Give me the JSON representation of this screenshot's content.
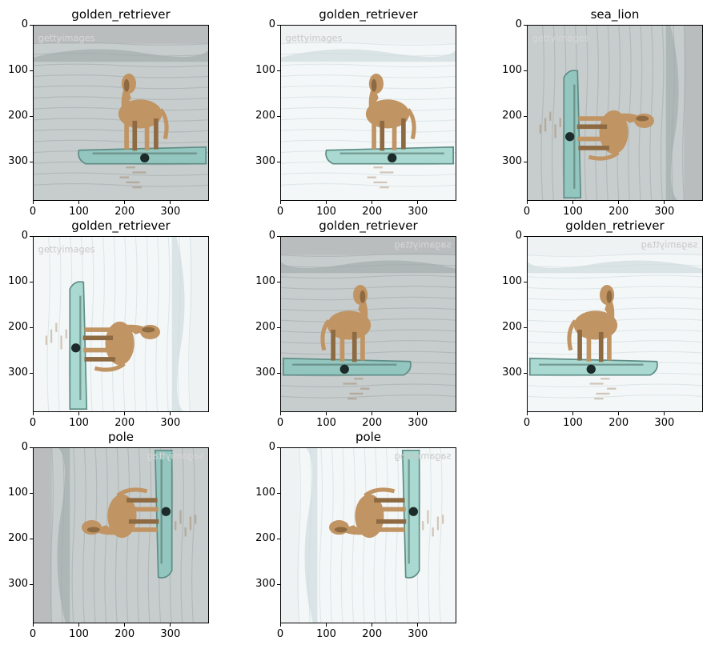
{
  "figure": {
    "panels": [
      {
        "title": "golden_retriever",
        "orientation": "upright",
        "flip": false,
        "brightness": "normal",
        "watermark": "gettyimages",
        "x_ticks": [
          "0",
          "100",
          "200",
          "300"
        ],
        "y_ticks": [
          "0",
          "100",
          "200",
          "300"
        ]
      },
      {
        "title": "golden_retriever",
        "orientation": "upright",
        "flip": false,
        "brightness": "bright",
        "watermark": "gettyimages",
        "x_ticks": [
          "0",
          "100",
          "200",
          "300"
        ],
        "y_ticks": [
          "0",
          "100",
          "200",
          "300"
        ]
      },
      {
        "title": "sea_lion",
        "orientation": "rotated",
        "flip": false,
        "brightness": "normal",
        "watermark": "gettyimages",
        "x_ticks": [
          "0",
          "100",
          "200",
          "300"
        ],
        "y_ticks": [
          "0",
          "100",
          "200",
          "300"
        ]
      },
      {
        "title": "golden_retriever",
        "orientation": "rotated",
        "flip": false,
        "brightness": "bright",
        "watermark": "gettyimages",
        "x_ticks": [
          "0",
          "100",
          "200",
          "300"
        ],
        "y_ticks": [
          "0",
          "100",
          "200",
          "300"
        ]
      },
      {
        "title": "golden_retriever",
        "orientation": "upright",
        "flip": true,
        "brightness": "normal",
        "watermark": "sagamiyttag",
        "x_ticks": [
          "0",
          "100",
          "200",
          "300"
        ],
        "y_ticks": [
          "0",
          "100",
          "200",
          "300"
        ]
      },
      {
        "title": "golden_retriever",
        "orientation": "upright",
        "flip": true,
        "brightness": "bright",
        "watermark": "sagamiyttag",
        "x_ticks": [
          "0",
          "100",
          "200",
          "300"
        ],
        "y_ticks": [
          "0",
          "100",
          "200",
          "300"
        ]
      },
      {
        "title": "pole",
        "orientation": "rotated",
        "flip": true,
        "brightness": "normal",
        "watermark": "sagamiyttag",
        "x_ticks": [
          "0",
          "100",
          "200",
          "300"
        ],
        "y_ticks": [
          "0",
          "100",
          "200",
          "300"
        ]
      },
      {
        "title": "pole",
        "orientation": "rotated",
        "flip": true,
        "brightness": "bright",
        "watermark": "sagamiyttag",
        "x_ticks": [
          "0",
          "100",
          "200",
          "300"
        ],
        "y_ticks": [
          "0",
          "100",
          "200",
          "300"
        ]
      }
    ]
  }
}
